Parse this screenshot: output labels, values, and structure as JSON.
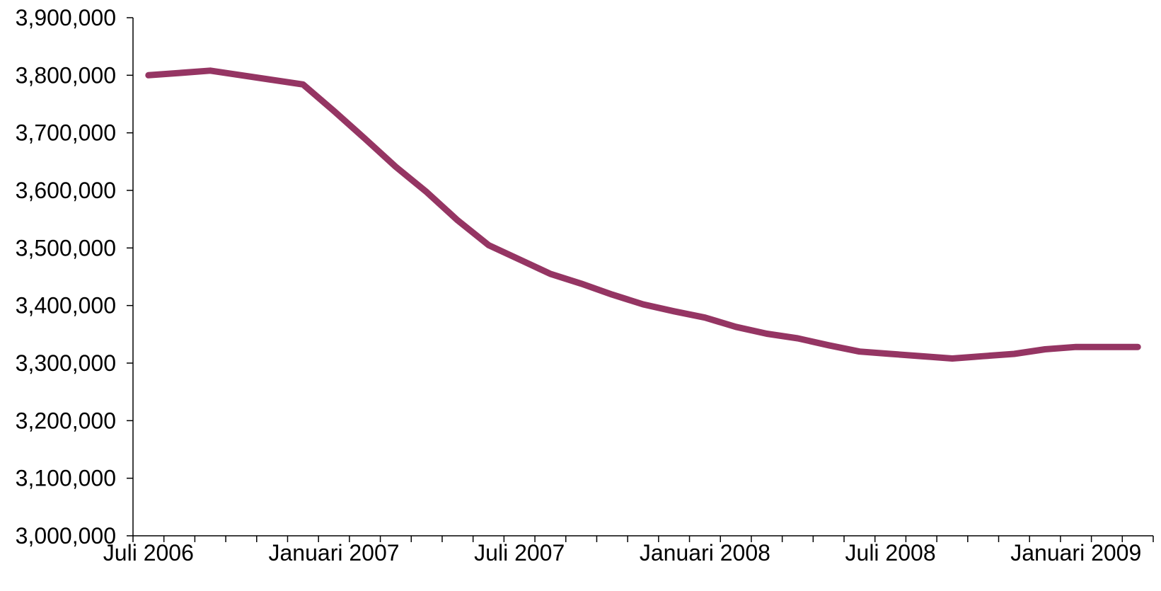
{
  "chart_data": {
    "type": "line",
    "title": "",
    "xlabel": "",
    "ylabel": "",
    "ylim": [
      3000000,
      3900000
    ],
    "yticks": [
      {
        "value": 3000000,
        "label": "3,000,000"
      },
      {
        "value": 3100000,
        "label": "3,100,000"
      },
      {
        "value": 3200000,
        "label": "3,200,000"
      },
      {
        "value": 3300000,
        "label": "3,300,000"
      },
      {
        "value": 3400000,
        "label": "3,400,000"
      },
      {
        "value": 3500000,
        "label": "3,500,000"
      },
      {
        "value": 3600000,
        "label": "3,600,000"
      },
      {
        "value": 3700000,
        "label": "3,700,000"
      },
      {
        "value": 3800000,
        "label": "3,800,000"
      },
      {
        "value": 3900000,
        "label": "3,900,000"
      }
    ],
    "x": [
      "2006-07",
      "2006-08",
      "2006-09",
      "2006-10",
      "2006-11",
      "2006-12",
      "2007-01",
      "2007-02",
      "2007-03",
      "2007-04",
      "2007-05",
      "2007-06",
      "2007-07",
      "2007-08",
      "2007-09",
      "2007-10",
      "2007-11",
      "2007-12",
      "2008-01",
      "2008-02",
      "2008-03",
      "2008-04",
      "2008-05",
      "2008-06",
      "2008-07",
      "2008-08",
      "2008-09",
      "2008-10",
      "2008-11",
      "2008-12",
      "2009-01",
      "2009-02",
      "2009-03"
    ],
    "xticks": [
      {
        "label": "Juli 2006",
        "at": "2006-07"
      },
      {
        "label": "Januari 2007",
        "at": "2007-01"
      },
      {
        "label": "Juli 2007",
        "at": "2007-07"
      },
      {
        "label": "Januari 2008",
        "at": "2008-01"
      },
      {
        "label": "Juli 2008",
        "at": "2008-07"
      },
      {
        "label": "Januari 2009",
        "at": "2009-01"
      }
    ],
    "series": [
      {
        "color": "#953563",
        "values": [
          3800000,
          3804000,
          3808000,
          3800000,
          3792000,
          3784000,
          3738000,
          3690000,
          3641000,
          3597000,
          3548000,
          3505000,
          3480000,
          3455000,
          3438000,
          3419000,
          3402000,
          3390000,
          3379000,
          3363000,
          3351000,
          3343000,
          3331000,
          3320000,
          3316000,
          3312000,
          3308000,
          3312000,
          3316000,
          3324000,
          3328000,
          3328000,
          3328000
        ]
      }
    ],
    "grid": false,
    "legend": "none"
  }
}
